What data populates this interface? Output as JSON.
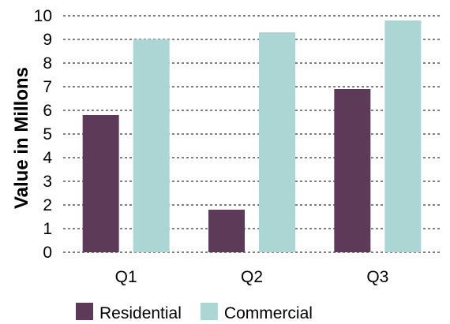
{
  "chart_data": {
    "type": "bar",
    "categories": [
      "Q1",
      "Q2",
      "Q3"
    ],
    "series": [
      {
        "name": "Residential",
        "values": [
          5.8,
          1.8,
          6.9
        ],
        "color": "#5c3a58"
      },
      {
        "name": "Commercial",
        "values": [
          9.0,
          9.3,
          9.8
        ],
        "color": "#acd6d4"
      }
    ],
    "ylabel": "Value in Millons",
    "xlabel": "",
    "ylim": [
      0,
      10
    ],
    "yticks": [
      "0",
      "1",
      "2",
      "3",
      "4",
      "5",
      "6",
      "7",
      "8",
      "9",
      "10"
    ],
    "grid": true,
    "grid_style": "dashed",
    "legend_position": "bottom"
  }
}
